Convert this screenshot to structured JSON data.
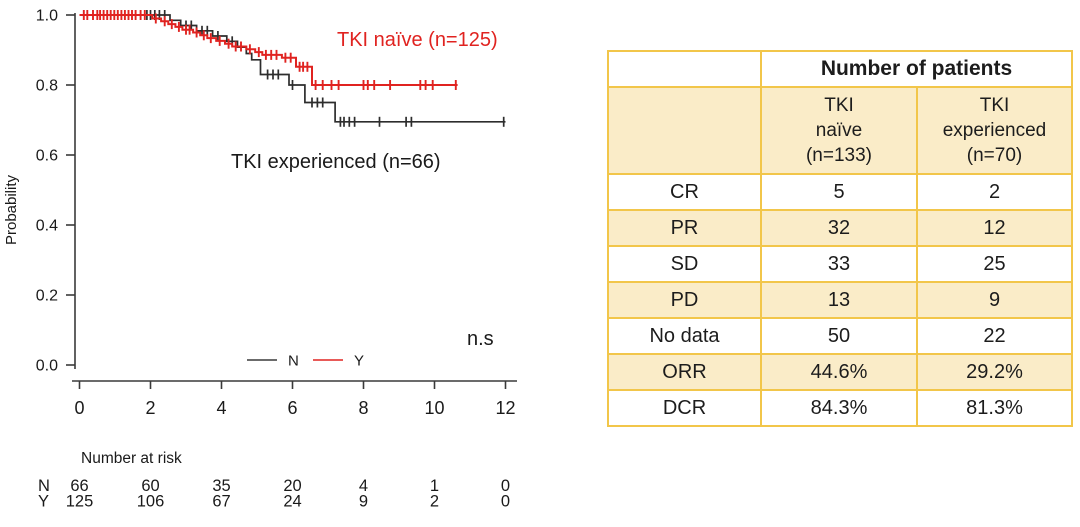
{
  "chart_data": {
    "type": "line",
    "subtype": "kaplan-meier-step",
    "title": "",
    "xlabel": "",
    "ylabel": "Probability",
    "xlim": [
      0,
      12
    ],
    "ylim": [
      0.0,
      1.0
    ],
    "x_ticks": [
      0,
      2,
      4,
      6,
      8,
      10,
      12
    ],
    "y_ticks": [
      1.0,
      0.8,
      0.6,
      0.4,
      0.2,
      0.0
    ],
    "grid": false,
    "legend_position": "bottom-center-inside",
    "annotations": {
      "naive": "TKI naïve (n=125)",
      "experienced": "TKI experienced (n=66)",
      "significance": "n.s"
    },
    "legend": [
      {
        "label": "N",
        "color": "#3a3a3a"
      },
      {
        "label": "Y",
        "color": "#e02320"
      }
    ],
    "series": [
      {
        "name": "N",
        "label": "TKI experienced (n=66)",
        "color": "#2d2d2d",
        "end_t": 12.0,
        "steps": [
          [
            0,
            1.0
          ],
          [
            2.55,
            0.985
          ],
          [
            2.85,
            0.97
          ],
          [
            3.3,
            0.955
          ],
          [
            3.75,
            0.94
          ],
          [
            4.15,
            0.925
          ],
          [
            4.45,
            0.908
          ],
          [
            4.7,
            0.89
          ],
          [
            4.85,
            0.872
          ],
          [
            5.1,
            0.83
          ],
          [
            5.9,
            0.8
          ],
          [
            6.35,
            0.75
          ],
          [
            7.2,
            0.695
          ]
        ],
        "censors": [
          [
            1.9,
            1.0
          ],
          [
            2.0,
            1.0
          ],
          [
            2.12,
            1.0
          ],
          [
            2.25,
            1.0
          ],
          [
            2.4,
            1.0
          ],
          [
            3.0,
            0.97
          ],
          [
            3.15,
            0.97
          ],
          [
            3.45,
            0.955
          ],
          [
            3.6,
            0.955
          ],
          [
            3.9,
            0.94
          ],
          [
            4.3,
            0.925
          ],
          [
            5.3,
            0.83
          ],
          [
            5.45,
            0.83
          ],
          [
            5.6,
            0.83
          ],
          [
            6.0,
            0.8
          ],
          [
            6.55,
            0.75
          ],
          [
            6.7,
            0.75
          ],
          [
            6.85,
            0.75
          ],
          [
            7.35,
            0.695
          ],
          [
            7.45,
            0.695
          ],
          [
            7.6,
            0.695
          ],
          [
            7.75,
            0.695
          ],
          [
            8.45,
            0.695
          ],
          [
            9.2,
            0.695
          ],
          [
            9.35,
            0.695
          ],
          [
            11.95,
            0.695
          ]
        ]
      },
      {
        "name": "Y",
        "label": "TKI naïve (n=125)",
        "color": "#e02320",
        "end_t": 10.65,
        "steps": [
          [
            0,
            1.0
          ],
          [
            2.05,
            0.99
          ],
          [
            2.3,
            0.982
          ],
          [
            2.5,
            0.974
          ],
          [
            2.7,
            0.966
          ],
          [
            2.9,
            0.958
          ],
          [
            3.2,
            0.95
          ],
          [
            3.4,
            0.942
          ],
          [
            3.6,
            0.934
          ],
          [
            3.85,
            0.926
          ],
          [
            4.1,
            0.918
          ],
          [
            4.3,
            0.91
          ],
          [
            4.7,
            0.902
          ],
          [
            4.95,
            0.894
          ],
          [
            5.15,
            0.886
          ],
          [
            5.7,
            0.878
          ],
          [
            6.1,
            0.852
          ],
          [
            6.55,
            0.8
          ]
        ],
        "censors": [
          [
            0.12,
            1.0
          ],
          [
            0.22,
            1.0
          ],
          [
            0.38,
            1.0
          ],
          [
            0.5,
            1.0
          ],
          [
            0.58,
            1.0
          ],
          [
            0.68,
            1.0
          ],
          [
            0.78,
            1.0
          ],
          [
            0.88,
            1.0
          ],
          [
            0.98,
            1.0
          ],
          [
            1.08,
            1.0
          ],
          [
            1.18,
            1.0
          ],
          [
            1.28,
            1.0
          ],
          [
            1.38,
            1.0
          ],
          [
            1.48,
            1.0
          ],
          [
            1.58,
            1.0
          ],
          [
            1.72,
            1.0
          ],
          [
            1.84,
            1.0
          ],
          [
            2.15,
            0.99
          ],
          [
            2.4,
            0.982
          ],
          [
            2.6,
            0.974
          ],
          [
            2.8,
            0.966
          ],
          [
            3.0,
            0.958
          ],
          [
            3.1,
            0.958
          ],
          [
            3.3,
            0.95
          ],
          [
            3.5,
            0.942
          ],
          [
            3.7,
            0.934
          ],
          [
            3.95,
            0.926
          ],
          [
            4.2,
            0.918
          ],
          [
            4.4,
            0.91
          ],
          [
            4.55,
            0.91
          ],
          [
            4.8,
            0.902
          ],
          [
            5.05,
            0.894
          ],
          [
            5.25,
            0.886
          ],
          [
            5.4,
            0.886
          ],
          [
            5.55,
            0.886
          ],
          [
            5.8,
            0.878
          ],
          [
            5.95,
            0.878
          ],
          [
            6.2,
            0.852
          ],
          [
            6.3,
            0.852
          ],
          [
            6.42,
            0.852
          ],
          [
            6.65,
            0.8
          ],
          [
            6.85,
            0.8
          ],
          [
            7.1,
            0.8
          ],
          [
            7.3,
            0.8
          ],
          [
            8.0,
            0.8
          ],
          [
            8.12,
            0.8
          ],
          [
            8.3,
            0.8
          ],
          [
            8.75,
            0.8
          ],
          [
            9.6,
            0.8
          ],
          [
            9.75,
            0.8
          ],
          [
            9.95,
            0.8
          ],
          [
            10.6,
            0.8
          ]
        ]
      }
    ],
    "number_at_risk": {
      "title": "Number at risk",
      "times": [
        0,
        2,
        4,
        6,
        8,
        10,
        12
      ],
      "rows": [
        {
          "label": "N",
          "values": [
            "66",
            "60",
            "35",
            "20",
            "4",
            "1",
            "0"
          ]
        },
        {
          "label": "Y",
          "values": [
            "125",
            "106",
            "67",
            "24",
            "9",
            "2",
            "0"
          ]
        }
      ]
    }
  },
  "table": {
    "header": "Number of patients",
    "col_headers": [
      "TKI\nnaïve\n(n=133)",
      "TKI\nexperienced\n(n=70)"
    ],
    "rows": [
      {
        "label": "CR",
        "values": [
          "5",
          "2"
        ]
      },
      {
        "label": "PR",
        "values": [
          "32",
          "12"
        ]
      },
      {
        "label": "SD",
        "values": [
          "33",
          "25"
        ]
      },
      {
        "label": "PD",
        "values": [
          "13",
          "9"
        ]
      },
      {
        "label": "No data",
        "values": [
          "50",
          "22"
        ]
      },
      {
        "label": "ORR",
        "values": [
          "44.6%",
          "29.2%"
        ]
      },
      {
        "label": "DCR",
        "values": [
          "84.3%",
          "81.3%"
        ]
      }
    ],
    "colors": {
      "band": "#faecc8",
      "border": "#f2c64a",
      "text": "#1c1c1c"
    }
  }
}
